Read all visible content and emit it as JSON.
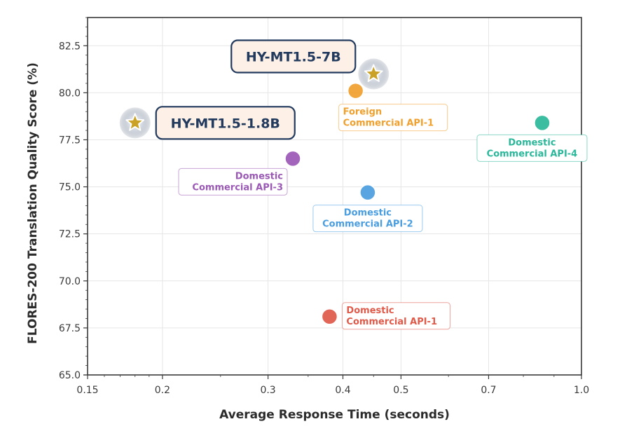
{
  "chart_data": {
    "type": "scatter",
    "title": "",
    "xlabel": "Average Response Time (seconds)",
    "ylabel": "FLORES-200 Translation Quality Score (%)",
    "xscale": "log",
    "xlim": [
      0.15,
      1.0
    ],
    "ylim": [
      65.0,
      84.0
    ],
    "xticks": [
      "0.15",
      "0.2",
      "0.3",
      "0.4",
      "0.5",
      "0.7",
      "1.0"
    ],
    "yticks": [
      "65.0",
      "67.5",
      "70.0",
      "72.5",
      "75.0",
      "77.5",
      "80.0",
      "82.5"
    ],
    "grid": true,
    "points": [
      {
        "name": "HY-MT1.5-7B",
        "x": 0.45,
        "y": 81.0,
        "marker": "star",
        "color": "#c9a227"
      },
      {
        "name": "HY-MT1.5-1.8B",
        "x": 0.18,
        "y": 78.4,
        "marker": "star",
        "color": "#c9a227"
      },
      {
        "name": "Foreign\nCommercial API-1",
        "x": 0.42,
        "y": 80.1,
        "marker": "circle",
        "color": "#f0a02d"
      },
      {
        "name": "Domestic\nCommercial API-4",
        "x": 0.86,
        "y": 78.4,
        "marker": "circle",
        "color": "#2bb89a"
      },
      {
        "name": "Domestic\nCommercial API-3",
        "x": 0.33,
        "y": 76.5,
        "marker": "circle",
        "color": "#9b59b6"
      },
      {
        "name": "Domestic\nCommercial API-2",
        "x": 0.44,
        "y": 74.7,
        "marker": "circle",
        "color": "#4a9ee0"
      },
      {
        "name": "Domestic\nCommercial API-1",
        "x": 0.38,
        "y": 68.1,
        "marker": "circle",
        "color": "#e05a4a"
      }
    ]
  }
}
